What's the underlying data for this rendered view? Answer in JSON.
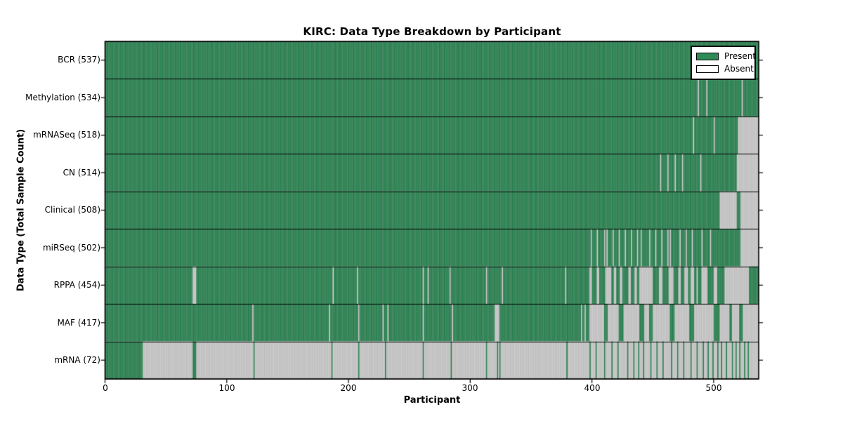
{
  "colors": {
    "present": "#2E8B57",
    "absent": "#D6D6D6",
    "cell_edge": "rgba(0,0,0,0.28)",
    "legend_absent_swatch": "#FFFFFF",
    "frame": "#000000"
  },
  "chart_data": {
    "type": "heatmap",
    "title": "KIRC: Data Type Breakdown by Participant",
    "xlabel": "Participant",
    "ylabel": "Data Type (Total Sample Count)",
    "legend": [
      "Present",
      "Absent"
    ],
    "legend_position": "upper right",
    "grid": false,
    "n_participants": 537,
    "xlim": [
      0,
      537
    ],
    "x_ticks": [
      "0",
      "100",
      "200",
      "300",
      "400",
      "500"
    ],
    "x_tick_values": [
      0,
      100,
      200,
      300,
      400,
      500
    ],
    "rows": [
      {
        "label": "BCR (537)",
        "name": "BCR",
        "count": 537,
        "absent_ranges": []
      },
      {
        "label": "Methylation (534)",
        "name": "Methylation",
        "count": 534,
        "absent_ranges": [
          [
            487,
            487
          ],
          [
            494,
            494
          ],
          [
            523,
            523
          ]
        ]
      },
      {
        "label": "mRNASeq (518)",
        "name": "mRNASeq",
        "count": 518,
        "absent_ranges": [
          [
            483,
            483
          ],
          [
            500,
            500
          ],
          [
            520,
            536
          ]
        ]
      },
      {
        "label": "CN (514)",
        "name": "CN",
        "count": 514,
        "absent_ranges": [
          [
            456,
            456
          ],
          [
            462,
            462
          ],
          [
            468,
            468
          ],
          [
            474,
            474
          ],
          [
            489,
            489
          ],
          [
            519,
            536
          ]
        ]
      },
      {
        "label": "Clinical (508)",
        "name": "Clinical",
        "count": 508,
        "absent_ranges": [
          [
            505,
            518
          ],
          [
            522,
            536
          ]
        ]
      },
      {
        "label": "miRSeq (502)",
        "name": "miRSeq",
        "count": 502,
        "absent_ranges": [
          [
            399,
            399
          ],
          [
            404,
            404
          ],
          [
            410,
            410
          ],
          [
            412,
            412
          ],
          [
            417,
            417
          ],
          [
            422,
            422
          ],
          [
            427,
            427
          ],
          [
            432,
            432
          ],
          [
            437,
            437
          ],
          [
            440,
            440
          ],
          [
            447,
            447
          ],
          [
            452,
            452
          ],
          [
            457,
            457
          ],
          [
            462,
            462
          ],
          [
            464,
            464
          ],
          [
            472,
            472
          ],
          [
            477,
            477
          ],
          [
            482,
            482
          ],
          [
            490,
            490
          ],
          [
            497,
            497
          ],
          [
            522,
            536
          ]
        ]
      },
      {
        "label": "RPPA (454)",
        "name": "RPPA",
        "count": 454,
        "absent_ranges": [
          [
            72,
            74
          ],
          [
            187,
            187
          ],
          [
            207,
            207
          ],
          [
            261,
            261
          ],
          [
            265,
            265
          ],
          [
            283,
            283
          ],
          [
            313,
            313
          ],
          [
            326,
            326
          ],
          [
            378,
            378
          ],
          [
            398,
            399
          ],
          [
            404,
            405
          ],
          [
            411,
            415
          ],
          [
            418,
            419
          ],
          [
            423,
            424
          ],
          [
            430,
            431
          ],
          [
            435,
            436
          ],
          [
            439,
            449
          ],
          [
            455,
            457
          ],
          [
            463,
            466
          ],
          [
            471,
            472
          ],
          [
            476,
            478
          ],
          [
            481,
            483
          ],
          [
            486,
            486
          ],
          [
            490,
            494
          ],
          [
            500,
            502
          ],
          [
            509,
            528
          ]
        ]
      },
      {
        "label": "MAF (417)",
        "name": "MAF",
        "count": 417,
        "absent_ranges": [
          [
            121,
            121
          ],
          [
            184,
            184
          ],
          [
            208,
            208
          ],
          [
            228,
            228
          ],
          [
            232,
            232
          ],
          [
            261,
            261
          ],
          [
            285,
            285
          ],
          [
            320,
            323
          ],
          [
            391,
            391
          ],
          [
            394,
            394
          ],
          [
            398,
            409
          ],
          [
            413,
            421
          ],
          [
            426,
            438
          ],
          [
            443,
            446
          ],
          [
            450,
            463
          ],
          [
            468,
            479
          ],
          [
            484,
            499
          ],
          [
            505,
            512
          ],
          [
            515,
            520
          ],
          [
            524,
            536
          ]
        ]
      },
      {
        "label": "mRNA (72)",
        "name": "mRNA",
        "count": 72,
        "present_ranges": [
          [
            0,
            30
          ],
          [
            72,
            74
          ],
          [
            122,
            122
          ],
          [
            186,
            186
          ],
          [
            208,
            208
          ],
          [
            230,
            230
          ],
          [
            261,
            261
          ],
          [
            284,
            284
          ],
          [
            313,
            313
          ],
          [
            322,
            322
          ],
          [
            324,
            324
          ],
          [
            379,
            379
          ],
          [
            398,
            398
          ],
          [
            403,
            403
          ],
          [
            410,
            410
          ],
          [
            416,
            416
          ],
          [
            421,
            421
          ],
          [
            429,
            429
          ],
          [
            434,
            434
          ],
          [
            438,
            438
          ],
          [
            442,
            442
          ],
          [
            448,
            448
          ],
          [
            453,
            453
          ],
          [
            458,
            458
          ],
          [
            465,
            465
          ],
          [
            470,
            470
          ],
          [
            475,
            475
          ],
          [
            481,
            481
          ],
          [
            486,
            486
          ],
          [
            491,
            491
          ],
          [
            495,
            495
          ],
          [
            499,
            499
          ],
          [
            503,
            503
          ],
          [
            506,
            506
          ],
          [
            510,
            510
          ],
          [
            515,
            515
          ],
          [
            518,
            518
          ],
          [
            521,
            521
          ],
          [
            525,
            525
          ],
          [
            528,
            528
          ]
        ]
      }
    ]
  }
}
